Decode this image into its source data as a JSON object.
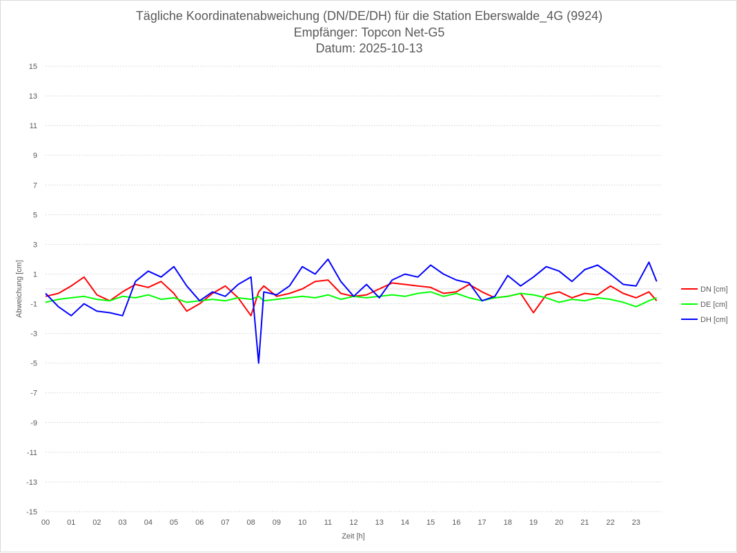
{
  "chart_data": {
    "type": "line",
    "title": "Tägliche Koordinatenabweichung (DN/DE/DH) für die Station Eberswalde_4G (9924)",
    "subtitle": "Empfänger: Topcon Net-G5",
    "date_line": "Datum: 2025-10-13",
    "xlabel": "Zeit [h]",
    "ylabel": "Abweichung [cm]",
    "xlim": [
      0,
      24
    ],
    "ylim": [
      -15,
      15
    ],
    "x_ticks": [
      "00",
      "01",
      "02",
      "03",
      "04",
      "05",
      "06",
      "07",
      "08",
      "09",
      "10",
      "11",
      "12",
      "13",
      "14",
      "15",
      "16",
      "17",
      "18",
      "19",
      "20",
      "21",
      "22",
      "23"
    ],
    "y_ticks": [
      "15",
      "13",
      "11",
      "9",
      "7",
      "5",
      "3",
      "1",
      "-1",
      "-3",
      "-5",
      "-7",
      "-9",
      "-11",
      "-13",
      "-15"
    ],
    "legend_position": "right",
    "x": [
      0.0,
      0.5,
      1.0,
      1.5,
      2.0,
      2.5,
      3.0,
      3.5,
      4.0,
      4.5,
      5.0,
      5.5,
      6.0,
      6.5,
      7.0,
      7.5,
      8.0,
      8.3,
      8.5,
      9.0,
      9.5,
      10.0,
      10.5,
      11.0,
      11.5,
      12.0,
      12.5,
      13.0,
      13.5,
      14.0,
      14.5,
      15.0,
      15.5,
      16.0,
      16.5,
      17.0,
      17.5,
      18.0,
      18.5,
      19.0,
      19.5,
      20.0,
      20.5,
      21.0,
      21.5,
      22.0,
      22.5,
      23.0,
      23.5,
      23.8
    ],
    "series": [
      {
        "name": "DN [cm]",
        "color": "#ff0000",
        "values": [
          -0.5,
          -0.3,
          0.2,
          0.8,
          -0.4,
          -0.8,
          -0.2,
          0.3,
          0.1,
          0.5,
          -0.3,
          -1.5,
          -1.0,
          -0.3,
          0.2,
          -0.6,
          -1.8,
          -0.2,
          0.2,
          -0.5,
          -0.3,
          0.0,
          0.5,
          0.6,
          -0.3,
          -0.5,
          -0.4,
          0.0,
          0.4,
          0.3,
          0.2,
          0.1,
          -0.3,
          -0.2,
          0.3,
          -0.2,
          -0.6,
          -0.5,
          -0.3,
          -1.6,
          -0.4,
          -0.2,
          -0.6,
          -0.3,
          -0.4,
          0.2,
          -0.3,
          -0.6,
          -0.2,
          -0.8
        ]
      },
      {
        "name": "DE [cm]",
        "color": "#00ff00",
        "values": [
          -0.9,
          -0.7,
          -0.6,
          -0.5,
          -0.7,
          -0.8,
          -0.5,
          -0.6,
          -0.4,
          -0.7,
          -0.6,
          -0.9,
          -0.8,
          -0.7,
          -0.8,
          -0.6,
          -0.7,
          -0.5,
          -0.8,
          -0.7,
          -0.6,
          -0.5,
          -0.6,
          -0.4,
          -0.7,
          -0.5,
          -0.6,
          -0.5,
          -0.4,
          -0.5,
          -0.3,
          -0.2,
          -0.5,
          -0.3,
          -0.6,
          -0.8,
          -0.6,
          -0.5,
          -0.3,
          -0.4,
          -0.6,
          -0.9,
          -0.7,
          -0.8,
          -0.6,
          -0.7,
          -0.9,
          -1.2,
          -0.8,
          -0.6
        ]
      },
      {
        "name": "DH [cm]",
        "color": "#0000ff",
        "values": [
          -0.3,
          -1.2,
          -1.8,
          -1.0,
          -1.5,
          -1.6,
          -1.8,
          0.5,
          1.2,
          0.8,
          1.5,
          0.2,
          -0.8,
          -0.2,
          -0.5,
          0.3,
          0.8,
          -5.0,
          -0.2,
          -0.4,
          0.2,
          1.5,
          1.0,
          2.0,
          0.5,
          -0.5,
          0.3,
          -0.6,
          0.6,
          1.0,
          0.8,
          1.6,
          1.0,
          0.6,
          0.4,
          -0.8,
          -0.5,
          0.9,
          0.2,
          0.8,
          1.5,
          1.2,
          0.5,
          1.3,
          1.6,
          1.0,
          0.3,
          0.2,
          1.8,
          0.5
        ]
      }
    ]
  }
}
